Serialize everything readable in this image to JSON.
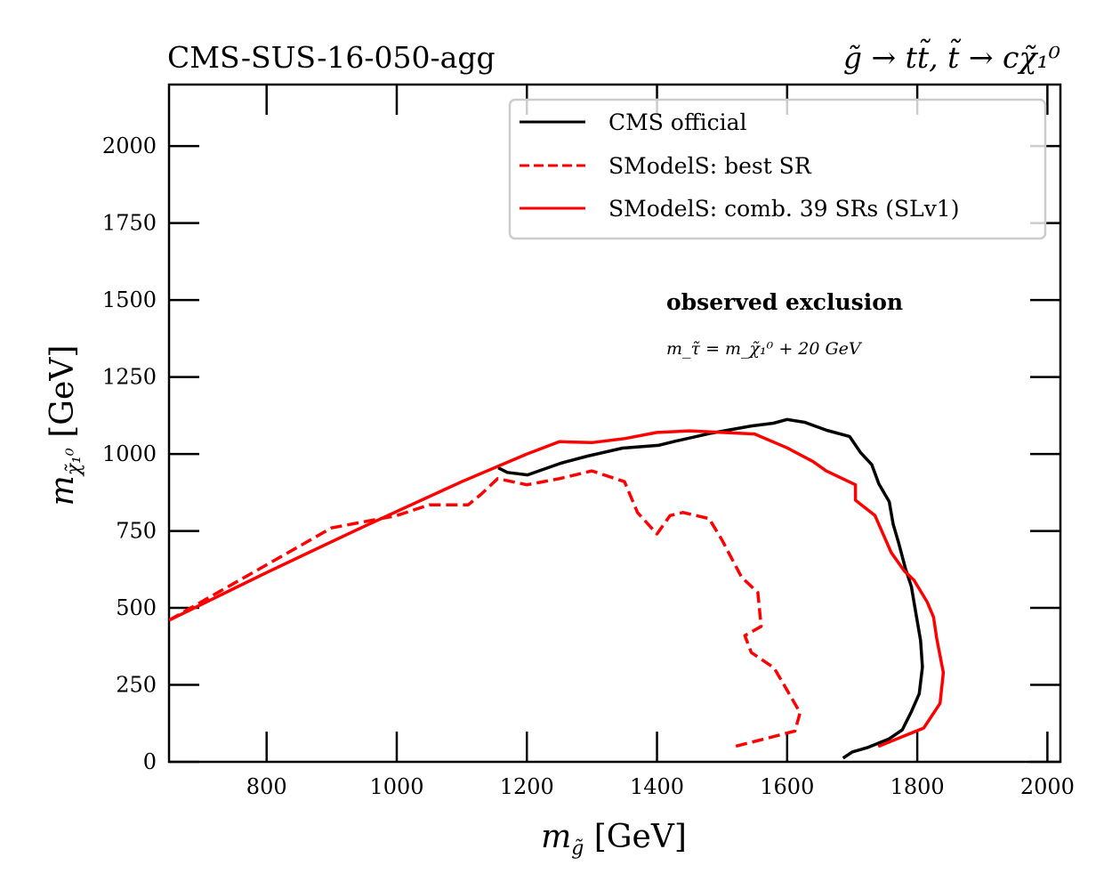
{
  "chart_data": {
    "type": "line",
    "title_left": "CMS-SUS-16-050-agg",
    "title_right": "g̃ → tt̃, t̃ → cχ̃₁⁰",
    "xlabel": "m_g̃ [GeV]",
    "ylabel": "m_χ̃₁⁰ [GeV]",
    "xlabel_parts": {
      "main": "m",
      "sub": "g̃",
      "unit": " [GeV]"
    },
    "ylabel_parts": {
      "main": "m",
      "sub": "χ̃₁⁰",
      "unit": " [GeV]"
    },
    "xlim": [
      650,
      2020
    ],
    "ylim": [
      0,
      2200
    ],
    "xticks": [
      800,
      1000,
      1200,
      1400,
      1600,
      1800,
      2000
    ],
    "yticks": [
      0,
      250,
      500,
      750,
      1000,
      1250,
      1500,
      1750,
      2000
    ],
    "xtick_labels": [
      "800",
      "1000",
      "1200",
      "1400",
      "1600",
      "1800",
      "2000"
    ],
    "ytick_labels": [
      "0",
      "250",
      "500",
      "750",
      "1000",
      "1250",
      "1500",
      "1750",
      "2000"
    ],
    "grid": false,
    "legend_position": "top-right",
    "annotations": [
      {
        "text": "observed exclusion",
        "style": "bold"
      },
      {
        "text": "m_τ̃ = m_χ̃₁⁰ + 20 GeV",
        "style": "small"
      }
    ],
    "series": [
      {
        "name": "CMS official",
        "color": "#000000",
        "dash": "solid",
        "x": [
          1156,
          1170,
          1201,
          1252,
          1293,
          1347,
          1402,
          1429,
          1484,
          1545,
          1579,
          1600,
          1627,
          1661,
          1696,
          1713,
          1730,
          1741,
          1757,
          1763,
          1771,
          1782,
          1791,
          1798,
          1805,
          1808,
          1803,
          1791,
          1777,
          1757,
          1723,
          1700,
          1686
        ],
        "y": [
          955,
          940,
          932,
          970,
          993,
          1019,
          1028,
          1042,
          1068,
          1091,
          1100,
          1112,
          1103,
          1077,
          1057,
          1004,
          966,
          903,
          845,
          772,
          714,
          627,
          569,
          482,
          395,
          308,
          221,
          163,
          104,
          75,
          46,
          32,
          12
        ]
      },
      {
        "name": "SModelS: best SR",
        "color": "#ff0000",
        "dash": "dashed",
        "x": [
          650,
          700,
          800,
          900,
          1000,
          1050,
          1110,
          1130,
          1155,
          1200,
          1250,
          1300,
          1350,
          1370,
          1400,
          1420,
          1440,
          1480,
          1500,
          1530,
          1555,
          1560,
          1535,
          1545,
          1580,
          1620,
          1612,
          1520
        ],
        "y": [
          460,
          520,
          640,
          760,
          800,
          835,
          835,
          870,
          920,
          900,
          920,
          945,
          910,
          810,
          740,
          800,
          810,
          790,
          720,
          600,
          550,
          440,
          410,
          355,
          305,
          160,
          100,
          50
        ]
      },
      {
        "name": "SModelS: comb. 39 SRs (SLv1)",
        "color": "#ff0000",
        "dash": "solid",
        "x": [
          650,
          800,
          950,
          1100,
          1200,
          1250,
          1300,
          1350,
          1400,
          1450,
          1500,
          1550,
          1600,
          1640,
          1660,
          1705,
          1705,
          1735,
          1760,
          1780,
          1795,
          1815,
          1825,
          1830,
          1840,
          1835,
          1810,
          1740
        ],
        "y": [
          460,
          615,
          765,
          910,
          1000,
          1040,
          1037,
          1050,
          1070,
          1075,
          1070,
          1065,
          1020,
          975,
          945,
          900,
          850,
          800,
          680,
          620,
          590,
          520,
          470,
          400,
          290,
          190,
          110,
          50
        ]
      }
    ]
  }
}
